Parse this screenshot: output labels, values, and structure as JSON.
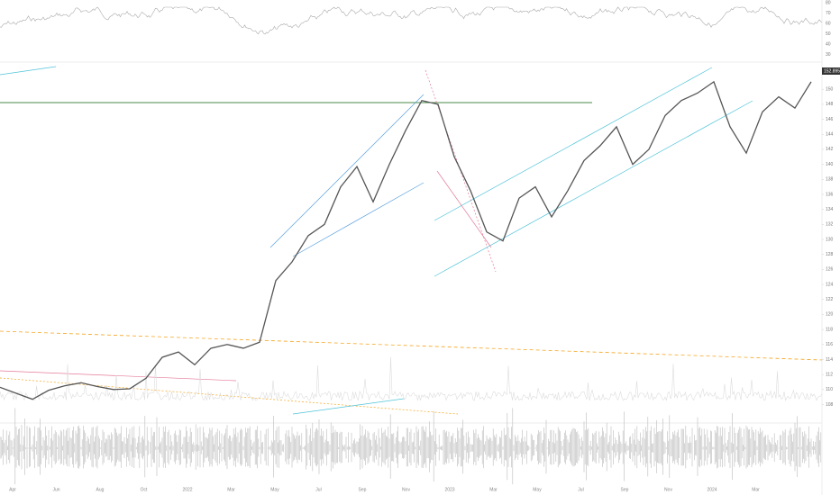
{
  "chart_data": {
    "type": "line",
    "values": [
      110.3,
      109.5,
      108.7,
      109.9,
      110.5,
      110.9,
      110.4,
      110,
      110.1,
      111.5,
      114.3,
      115,
      113.3,
      115.5,
      116,
      115.5,
      116.3,
      124.5,
      127,
      130.5,
      132,
      137,
      139.7,
      135,
      140,
      144.5,
      148.5,
      148,
      141,
      136.5,
      131,
      129.8,
      135.5,
      137,
      133,
      136.5,
      140.5,
      142.5,
      145,
      140,
      142,
      146.5,
      148.5,
      149.5,
      151,
      145,
      141.5,
      147,
      149,
      147.5,
      151
    ],
    "color": "#555555",
    "ylim": [
      106.5,
      153.5
    ],
    "yticks": [
      108,
      110,
      112,
      114,
      116,
      118,
      120,
      122,
      124,
      126,
      128,
      130,
      132,
      134,
      136,
      138,
      140,
      142,
      144,
      146,
      148,
      150
    ],
    "last_price": 152.895,
    "xlabels": [
      "Apr",
      "Jun",
      "Aug",
      "Oct",
      "2022",
      "Mar",
      "May",
      "Jul",
      "Sep",
      "Nov",
      "2023",
      "Mar",
      "May",
      "Jul",
      "Sep",
      "Nov",
      "2024",
      "Mar"
    ],
    "oscillator_ticks": [
      80,
      70,
      60,
      50,
      40,
      30
    ]
  }
}
